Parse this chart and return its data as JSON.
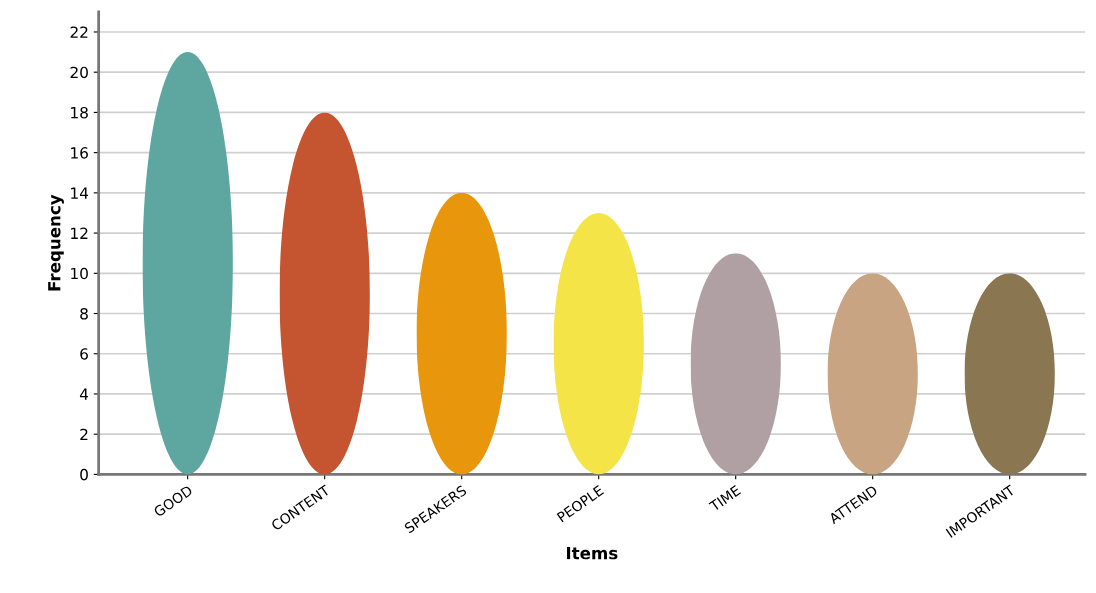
{
  "chart_data": {
    "type": "bar",
    "xlabel": "Items",
    "ylabel": "Frequency",
    "categories": [
      "GOOD",
      "CONTENT",
      "SPEAKERS",
      "PEOPLE",
      "TIME",
      "ATTEND",
      "IMPORTANT"
    ],
    "values": [
      21,
      18,
      14,
      13,
      11,
      10,
      10
    ],
    "colors": [
      "#5ea6a0",
      "#c45530",
      "#e8960c",
      "#f5e448",
      "#b0a0a3",
      "#c8a482",
      "#8a7650"
    ],
    "ylim": [
      0,
      23
    ],
    "yticks": [
      0,
      2,
      4,
      6,
      8,
      10,
      12,
      14,
      16,
      18,
      20,
      22
    ],
    "grid": "y"
  }
}
